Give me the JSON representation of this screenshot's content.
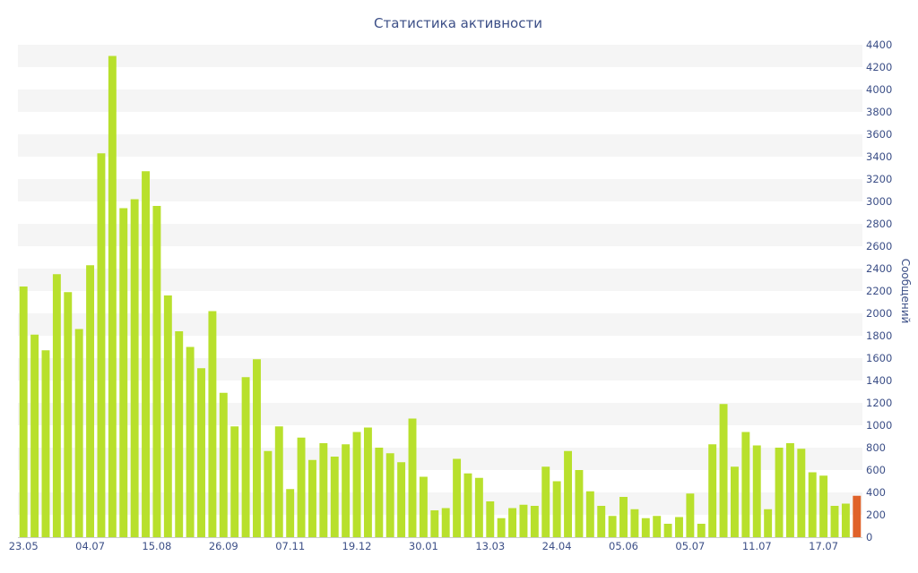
{
  "chart_data": {
    "type": "bar",
    "title": "Статистика активности",
    "xlabel": "",
    "ylabel": "Сообщений",
    "ylim": [
      0,
      4400
    ],
    "yticks": [
      0,
      200,
      400,
      600,
      800,
      1000,
      1200,
      1400,
      1600,
      1800,
      2000,
      2200,
      2400,
      2600,
      2800,
      3000,
      3200,
      3400,
      3600,
      3800,
      4000,
      4200,
      4400
    ],
    "xtick_labels": [
      {
        "index": 0,
        "label": "23.05"
      },
      {
        "index": 6,
        "label": "04.07"
      },
      {
        "index": 12,
        "label": "15.08"
      },
      {
        "index": 18,
        "label": "26.09"
      },
      {
        "index": 24,
        "label": "07.11"
      },
      {
        "index": 30,
        "label": "19.12"
      },
      {
        "index": 36,
        "label": "30.01"
      },
      {
        "index": 42,
        "label": "13.03"
      },
      {
        "index": 48,
        "label": "24.04"
      },
      {
        "index": 54,
        "label": "05.06"
      },
      {
        "index": 60,
        "label": "05.07"
      },
      {
        "index": 66,
        "label": "11.07"
      },
      {
        "index": 72,
        "label": "17.07"
      }
    ],
    "y_axis_position": "right",
    "grid": "alternating horizontal bands",
    "bar_color": "#b8e02c",
    "highlight_color": "#e0622a",
    "band_color": "#f5f5f5",
    "series": [
      {
        "values": [
          2240,
          1810,
          1670,
          2350,
          2190,
          1860,
          2430,
          3430,
          4300,
          2940,
          3020,
          3270,
          2960,
          2160,
          1840,
          1700,
          1510,
          2020,
          1290,
          990,
          1430,
          1590,
          770,
          990,
          430,
          890,
          690,
          840,
          720,
          830,
          940,
          980,
          800,
          750,
          670,
          1060,
          540,
          240,
          260,
          700,
          570,
          530,
          320,
          170,
          260,
          290,
          280,
          630,
          500,
          770,
          600,
          410,
          280,
          190,
          360,
          250,
          170,
          190,
          120,
          180,
          390,
          120,
          830,
          1190,
          630,
          940,
          820,
          250,
          800,
          840,
          790,
          580,
          550,
          280,
          300,
          370
        ],
        "highlight_last": true
      }
    ]
  }
}
